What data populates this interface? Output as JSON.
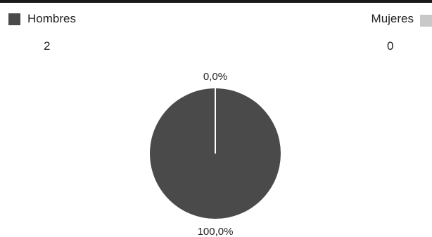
{
  "legend": {
    "left": {
      "label": "Hombres",
      "count": "2",
      "color": "#4a4a4a"
    },
    "right": {
      "label": "Mujeres",
      "count": "0",
      "color": "#c8c8c8"
    }
  },
  "chart_data": {
    "type": "pie",
    "categories": [
      "Hombres",
      "Mujeres"
    ],
    "values": [
      2,
      0
    ],
    "colors": [
      "#4a4a4a",
      "#c8c8c8"
    ],
    "data_labels": [
      "100,0%",
      "0,0%"
    ]
  }
}
